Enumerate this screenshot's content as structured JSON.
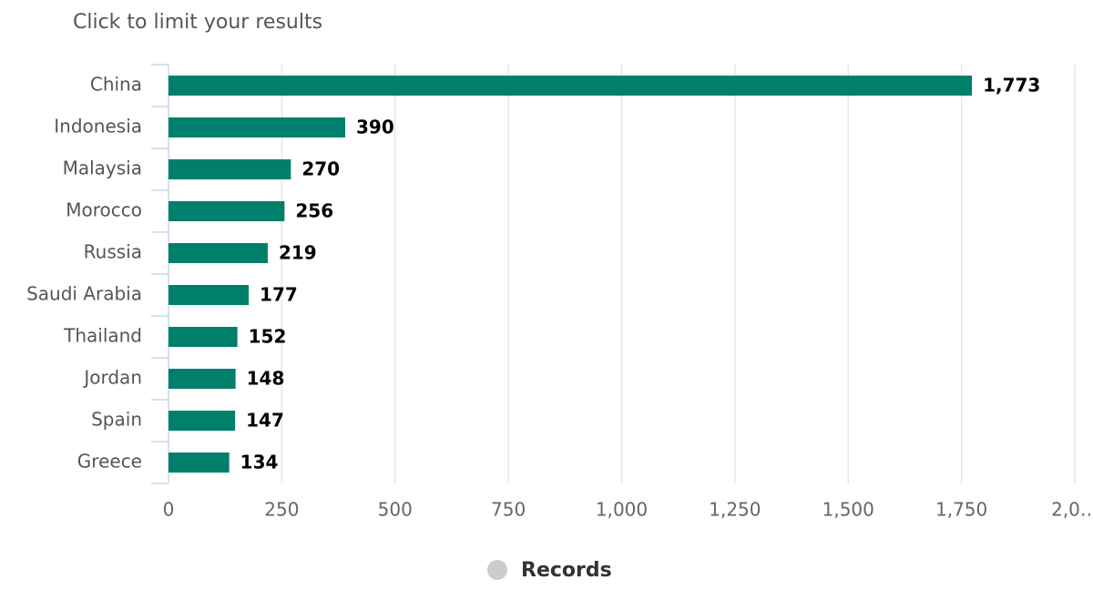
{
  "chart_data": {
    "type": "bar",
    "orientation": "horizontal",
    "subtitle": "Click to limit your results",
    "categories": [
      "China",
      "Indonesia",
      "Malaysia",
      "Morocco",
      "Russia",
      "Saudi Arabia",
      "Thailand",
      "Jordan",
      "Spain",
      "Greece"
    ],
    "series": [
      {
        "name": "Records",
        "color": "#007f6a",
        "legend_color": "#cccccc",
        "values": [
          1773,
          390,
          270,
          256,
          219,
          177,
          152,
          148,
          147,
          134
        ],
        "value_labels": [
          "1,773",
          "390",
          "270",
          "256",
          "219",
          "177",
          "152",
          "148",
          "147",
          "134"
        ]
      }
    ],
    "xlim": [
      0,
      2000
    ],
    "xticks": [
      0,
      250,
      500,
      750,
      {
        "value": 1000,
        "label": "1,000"
      },
      {
        "value": 1250,
        "label": "1,250"
      },
      {
        "value": 1500,
        "label": "1,500"
      },
      {
        "value": 1750,
        "label": "1,750"
      },
      {
        "value": 2000,
        "label": "2,0…"
      }
    ],
    "grid": true,
    "legend": "bottom"
  }
}
